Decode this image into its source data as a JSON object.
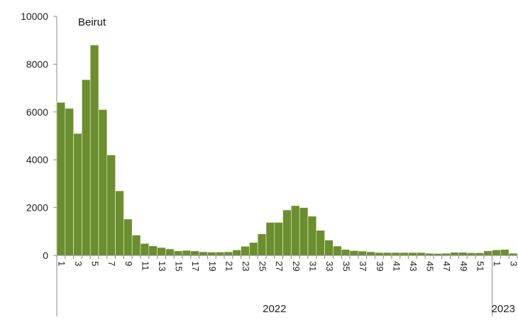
{
  "chart_data": {
    "type": "bar",
    "title": "Beirut",
    "xlabel": "",
    "ylabel": "",
    "ylim": [
      0,
      10000
    ],
    "yticks": [
      0,
      2000,
      4000,
      6000,
      8000,
      10000
    ],
    "bar_color": "#6b8e2e",
    "bar_edge_color": "#f2f5ea",
    "grid": false,
    "legend": "none",
    "groups": [
      {
        "label": "2022",
        "weeks": 52
      },
      {
        "label": "2023",
        "weeks": 3
      }
    ],
    "categories": [
      "1",
      "2",
      "3",
      "4",
      "5",
      "6",
      "7",
      "8",
      "9",
      "10",
      "11",
      "12",
      "13",
      "14",
      "15",
      "16",
      "17",
      "18",
      "19",
      "20",
      "21",
      "22",
      "23",
      "24",
      "25",
      "26",
      "27",
      "28",
      "29",
      "30",
      "31",
      "32",
      "33",
      "34",
      "35",
      "36",
      "37",
      "38",
      "39",
      "40",
      "41",
      "42",
      "43",
      "44",
      "45",
      "46",
      "47",
      "48",
      "49",
      "50",
      "51",
      "52",
      "1",
      "2",
      "3"
    ],
    "tick_labels": [
      "1",
      "",
      "3",
      "",
      "5",
      "",
      "7",
      "",
      "9",
      "",
      "11",
      "",
      "13",
      "",
      "15",
      "",
      "17",
      "",
      "19",
      "",
      "21",
      "",
      "23",
      "",
      "25",
      "",
      "27",
      "",
      "29",
      "",
      "31",
      "",
      "33",
      "",
      "35",
      "",
      "37",
      "",
      "39",
      "",
      "41",
      "",
      "43",
      "",
      "45",
      "",
      "47",
      "",
      "49",
      "",
      "51",
      "",
      "1",
      "",
      "3"
    ],
    "values": [
      6400,
      6150,
      5100,
      7350,
      8800,
      6100,
      4200,
      2700,
      1520,
      850,
      500,
      400,
      330,
      270,
      190,
      210,
      190,
      150,
      140,
      140,
      150,
      230,
      380,
      540,
      900,
      1380,
      1380,
      1900,
      2080,
      2000,
      1640,
      1050,
      640,
      390,
      250,
      200,
      180,
      150,
      120,
      120,
      120,
      120,
      120,
      120,
      90,
      80,
      90,
      130,
      130,
      110,
      110,
      190,
      230,
      250,
      90
    ]
  }
}
